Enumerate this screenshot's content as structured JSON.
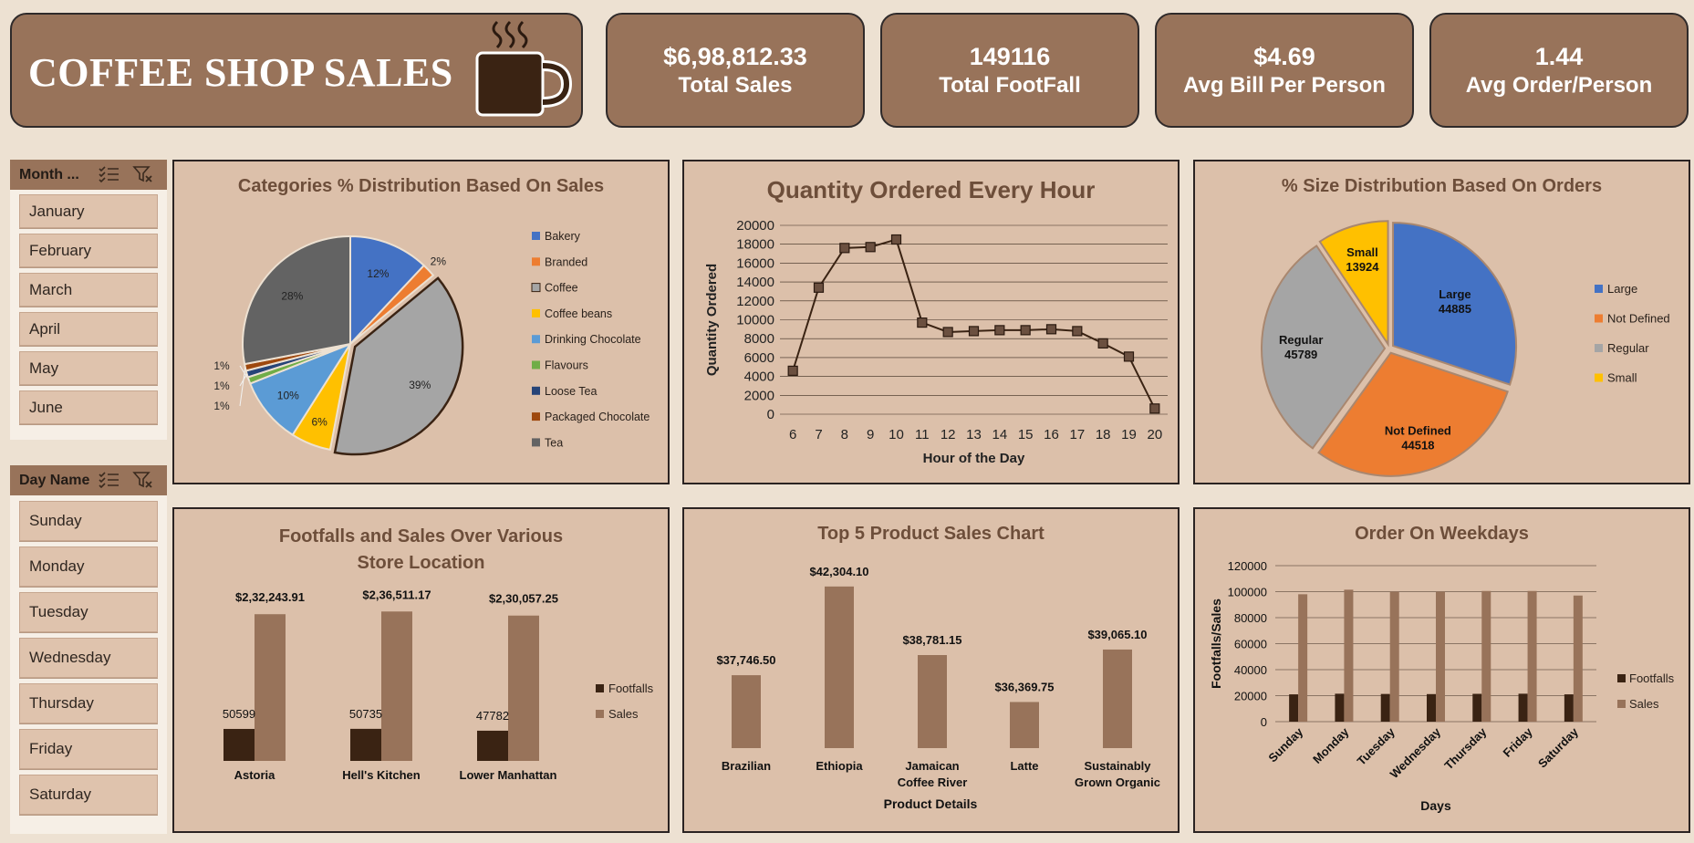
{
  "header": {
    "title": "COFFEE SHOP SALES"
  },
  "kpis": [
    {
      "value": "$6,98,812.33",
      "label": "Total Sales"
    },
    {
      "value": "149116",
      "label": "Total FootFall"
    },
    {
      "value": "$4.69",
      "label": "Avg Bill Per Person"
    },
    {
      "value": "1.44",
      "label": "Avg Order/Person"
    }
  ],
  "month_slicer": {
    "title": "Month ...",
    "items": [
      "January",
      "February",
      "March",
      "April",
      "May",
      "June"
    ]
  },
  "day_slicer": {
    "title": "Day Name",
    "items": [
      "Sunday",
      "Monday",
      "Tuesday",
      "Wednesday",
      "Thursday",
      "Friday",
      "Saturday"
    ]
  },
  "colors": {
    "card": "#98735a",
    "panel": "#dcc0aa",
    "dark": "#3a2313",
    "bar": "#98735a",
    "title": "#6d4e3a"
  },
  "chart_data": [
    {
      "type": "pie",
      "title": "Categories % Distribution Based On Sales",
      "labels": [
        "Bakery",
        "Branded",
        "Coffee",
        "Coffee beans",
        "Drinking Chocolate",
        "Flavours",
        "Loose Tea",
        "Packaged Chocolate",
        "Tea"
      ],
      "values": [
        12,
        2,
        39,
        6,
        10,
        1,
        1,
        1,
        28
      ],
      "data_labels": [
        "12%",
        "2%",
        "39%",
        "6%",
        "10%",
        "1%",
        "1%",
        "1%",
        "28%"
      ],
      "colors": [
        "#4472c4",
        "#ed7d31",
        "#a5a5a5",
        "#ffc000",
        "#5b9bd5",
        "#70ad47",
        "#264478",
        "#9e480e",
        "#636363"
      ],
      "legend": "right"
    },
    {
      "type": "line",
      "title": "Quantity Ordered Every Hour",
      "xlabel": "Hour of the Day",
      "ylabel": "Quantity Ordered",
      "x": [
        6,
        7,
        8,
        9,
        10,
        11,
        12,
        13,
        14,
        15,
        16,
        17,
        18,
        19,
        20
      ],
      "values": [
        4600,
        13400,
        17600,
        17700,
        18500,
        9700,
        8700,
        8800,
        8900,
        8900,
        9000,
        8800,
        7500,
        6100,
        600
      ],
      "ylim": [
        0,
        20000
      ],
      "yticks": [
        "0",
        "2000",
        "4000",
        "6000",
        "8000",
        "10000",
        "12000",
        "14000",
        "16000",
        "18000",
        "20000"
      ],
      "grid": true
    },
    {
      "type": "pie",
      "title": "% Size Distribution Based On Orders",
      "labels": [
        "Large",
        "Not Defined",
        "Regular",
        "Small"
      ],
      "values": [
        44885,
        44518,
        45789,
        13924
      ],
      "colors": [
        "#4472c4",
        "#ed7d31",
        "#a5a5a5",
        "#ffc000"
      ],
      "legend": "right"
    },
    {
      "type": "bar",
      "title": "Footfalls and Sales Over Various Store Location",
      "categories": [
        "Astoria",
        "Hell's Kitchen",
        "Lower Manhattan"
      ],
      "series": [
        {
          "name": "Footfalls",
          "values": [
            50599,
            50735,
            47782
          ],
          "labels": [
            "50599",
            "50735",
            "47782"
          ]
        },
        {
          "name": "Sales",
          "values": [
            232243.91,
            236511.17,
            230057.25
          ],
          "labels": [
            "$2,32,243.91",
            "$2,36,511.17",
            "$2,30,057.25"
          ]
        }
      ],
      "legend": "right"
    },
    {
      "type": "bar",
      "title": "Top 5 Product Sales Chart",
      "xlabel": "Product Details",
      "categories": [
        "Brazilian",
        "Ethiopia",
        "Jamaican Coffee River",
        "Latte",
        "Sustainably Grown Organic"
      ],
      "values": [
        37746.5,
        42304.1,
        38781.15,
        36369.75,
        39065.1
      ],
      "data_labels": [
        "$37,746.50",
        "$42,304.10",
        "$38,781.15",
        "$36,369.75",
        "$39,065.10"
      ]
    },
    {
      "type": "bar",
      "title": "Order On Weekdays",
      "xlabel": "Days",
      "ylabel": "Footfalls/Sales",
      "categories": [
        "Sunday",
        "Monday",
        "Tuesday",
        "Wednesday",
        "Thursday",
        "Friday",
        "Saturday"
      ],
      "series": [
        {
          "name": "Footfalls",
          "values": [
            21000,
            21500,
            21300,
            21200,
            21400,
            21500,
            21000
          ]
        },
        {
          "name": "Sales",
          "values": [
            98000,
            101500,
            100000,
            100000,
            100500,
            100500,
            97000
          ]
        }
      ],
      "ylim": [
        0,
        120000
      ],
      "yticks": [
        "0",
        "20000",
        "40000",
        "60000",
        "80000",
        "100000",
        "120000"
      ],
      "grid": true,
      "legend": "right"
    }
  ]
}
